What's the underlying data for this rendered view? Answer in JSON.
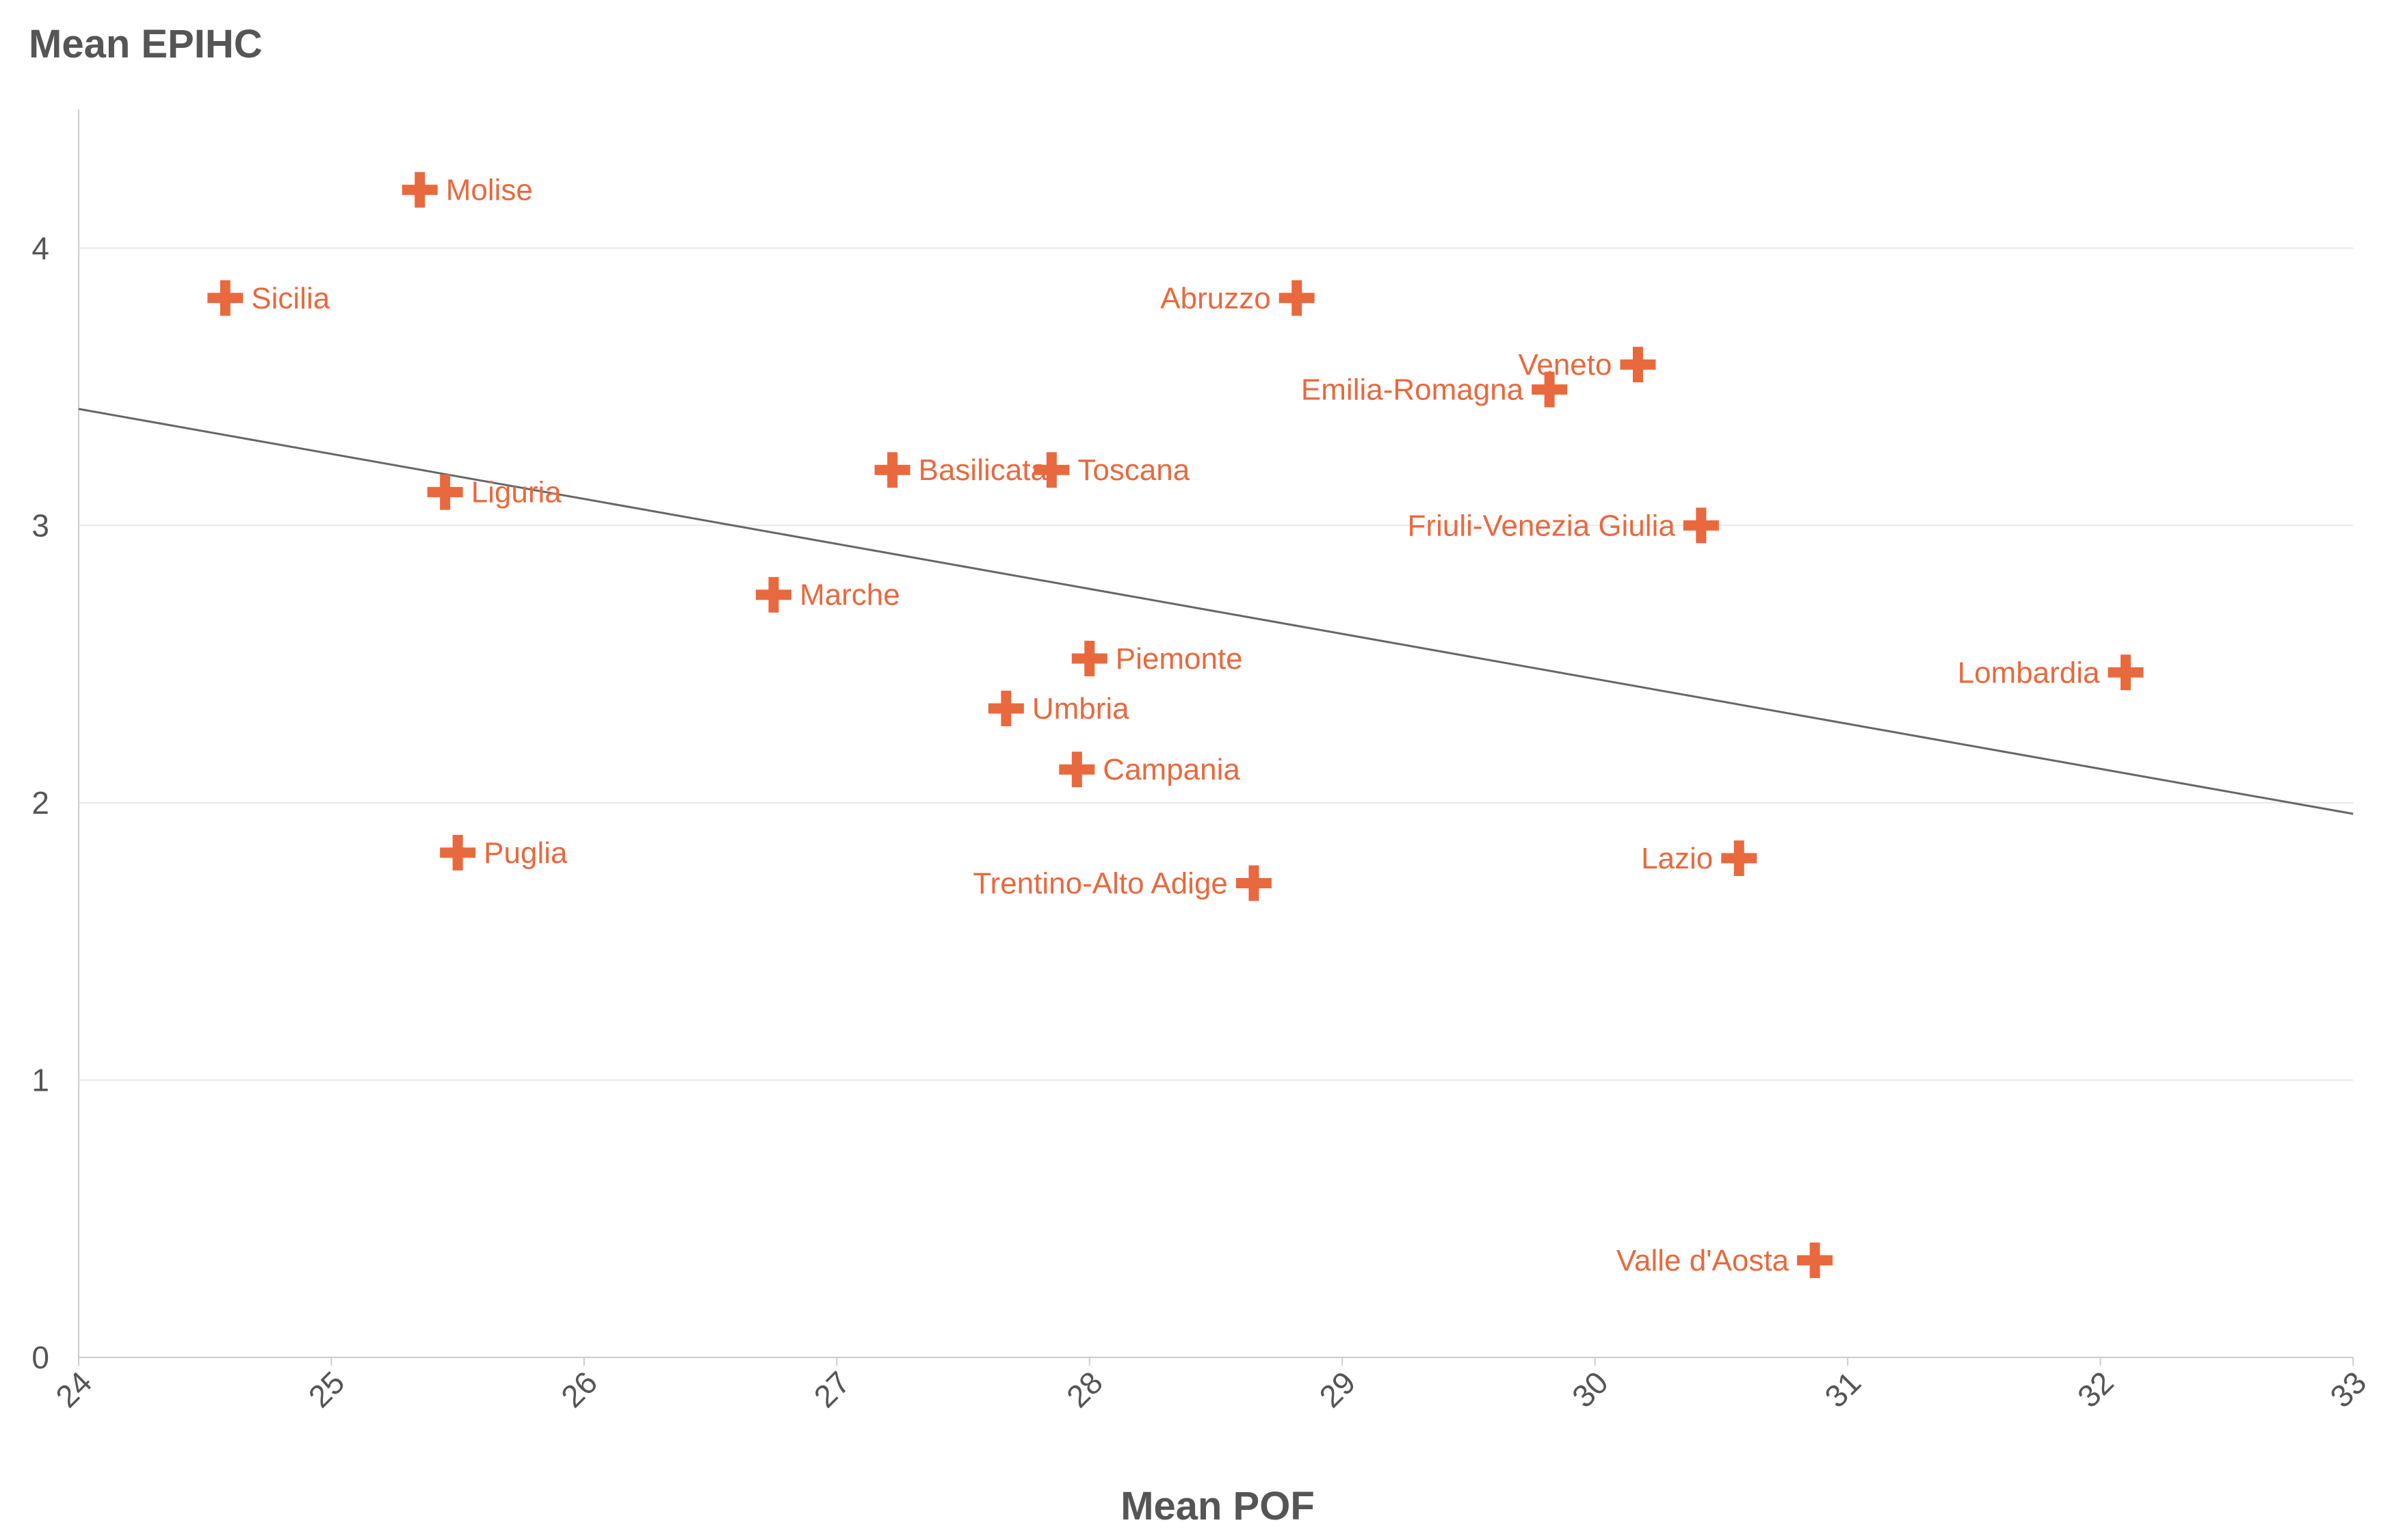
{
  "chart_data": {
    "type": "scatter",
    "ylabel": "Mean EPIHC",
    "xlabel": "Mean POF",
    "xlim": [
      24,
      33
    ],
    "ylim": [
      0,
      4.5
    ],
    "x_ticks": [
      24,
      25,
      26,
      27,
      28,
      29,
      30,
      31,
      32,
      33
    ],
    "y_ticks": [
      0,
      1,
      2,
      3,
      4
    ],
    "grid": "horizontal",
    "marker_color": "#e8693e",
    "trendline_color": "#666666",
    "trendline": {
      "x": [
        24,
        33
      ],
      "y": [
        3.42,
        1.96
      ]
    },
    "points": [
      {
        "label": "Molise",
        "x": 25.35,
        "y": 4.21,
        "label_side": "right"
      },
      {
        "label": "Sicilia",
        "x": 24.58,
        "y": 3.82,
        "label_side": "right"
      },
      {
        "label": "Abruzzo",
        "x": 28.82,
        "y": 3.82,
        "label_side": "left"
      },
      {
        "label": "Veneto",
        "x": 30.17,
        "y": 3.58,
        "label_side": "left"
      },
      {
        "label": "Emilia-Romagna",
        "x": 29.82,
        "y": 3.49,
        "label_side": "left"
      },
      {
        "label": "Basilicata",
        "x": 27.22,
        "y": 3.2,
        "label_side": "right"
      },
      {
        "label": "Toscana",
        "x": 27.85,
        "y": 3.2,
        "label_side": "right"
      },
      {
        "label": "Liguria",
        "x": 25.45,
        "y": 3.12,
        "label_side": "right"
      },
      {
        "label": "Friuli-Venezia Giulia",
        "x": 30.42,
        "y": 3.0,
        "label_side": "left"
      },
      {
        "label": "Marche",
        "x": 26.75,
        "y": 2.75,
        "label_side": "right"
      },
      {
        "label": "Piemonte",
        "x": 28.0,
        "y": 2.52,
        "label_side": "right"
      },
      {
        "label": "Lombardia",
        "x": 32.1,
        "y": 2.47,
        "label_side": "left"
      },
      {
        "label": "Umbria",
        "x": 27.67,
        "y": 2.34,
        "label_side": "right"
      },
      {
        "label": "Campania",
        "x": 27.95,
        "y": 2.12,
        "label_side": "right"
      },
      {
        "label": "Puglia",
        "x": 25.5,
        "y": 1.82,
        "label_side": "right"
      },
      {
        "label": "Lazio",
        "x": 30.57,
        "y": 1.8,
        "label_side": "left"
      },
      {
        "label": "Trentino-Alto Adige",
        "x": 28.65,
        "y": 1.71,
        "label_side": "left"
      },
      {
        "label": "Valle d'Aosta",
        "x": 30.87,
        "y": 0.35,
        "label_side": "left"
      }
    ]
  }
}
